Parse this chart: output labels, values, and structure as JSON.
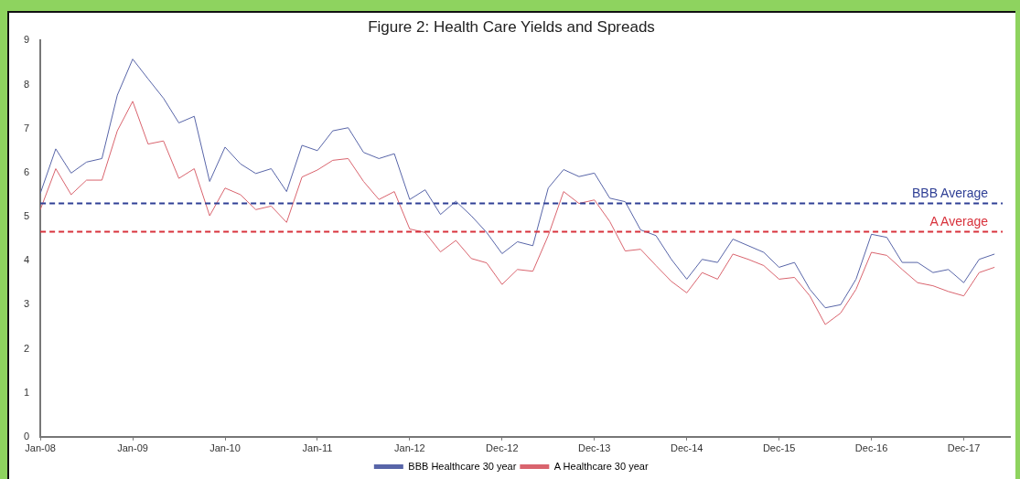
{
  "chart_data": {
    "type": "line",
    "title": "Figure 2: Health Care Yields and Spreads",
    "categories": [
      "Jan-08",
      null,
      null,
      null,
      null,
      null,
      "Jan-09",
      null,
      null,
      null,
      null,
      null,
      "Jan-10",
      null,
      null,
      null,
      null,
      null,
      "Jan-11",
      null,
      null,
      null,
      null,
      null,
      "Jan-12",
      null,
      null,
      null,
      null,
      null,
      "Dec-12",
      null,
      null,
      null,
      null,
      null,
      "Dec-13",
      null,
      null,
      null,
      null,
      null,
      "Dec-14",
      null,
      null,
      null,
      null,
      null,
      "Dec-15",
      null,
      null,
      null,
      null,
      null,
      "Dec-16",
      null,
      null,
      null,
      null,
      null,
      "Dec-17",
      null,
      null,
      null
    ],
    "series": [
      {
        "name": "BBB Healthcare 30 year",
        "color": "#5865a8",
        "values": [
          5.53,
          6.54,
          5.99,
          6.24,
          6.32,
          7.76,
          8.58,
          8.13,
          7.69,
          7.13,
          7.28,
          5.8,
          6.58,
          6.2,
          5.98,
          6.09,
          5.57,
          6.62,
          6.5,
          6.95,
          7.02,
          6.46,
          6.32,
          6.43,
          5.39,
          5.61,
          5.05,
          5.35,
          5.02,
          4.64,
          4.16,
          4.43,
          4.34,
          5.65,
          6.07,
          5.91,
          5.99,
          5.42,
          5.34,
          4.7,
          4.57,
          4.03,
          3.58,
          4.03,
          3.96,
          4.49,
          4.34,
          4.19,
          3.85,
          3.96,
          3.35,
          2.93,
          3.0,
          3.58,
          4.6,
          4.53,
          3.96,
          3.96,
          3.73,
          3.8,
          3.5,
          4.03,
          4.15,
          null
        ]
      },
      {
        "name": "A Healthcare 30 year",
        "color": "#d9646e",
        "values": [
          5.16,
          6.09,
          5.5,
          5.83,
          5.83,
          6.95,
          7.62,
          6.65,
          6.72,
          5.87,
          6.09,
          5.02,
          5.65,
          5.5,
          5.16,
          5.24,
          4.87,
          5.9,
          6.06,
          6.28,
          6.32,
          5.8,
          5.39,
          5.57,
          4.72,
          4.64,
          4.2,
          4.46,
          4.05,
          3.95,
          3.46,
          3.8,
          3.76,
          4.57,
          5.57,
          5.3,
          5.38,
          4.89,
          4.22,
          4.26,
          3.89,
          3.53,
          3.27,
          3.73,
          3.58,
          4.15,
          4.03,
          3.89,
          3.58,
          3.62,
          3.2,
          2.55,
          2.81,
          3.35,
          4.19,
          4.12,
          3.8,
          3.5,
          3.43,
          3.3,
          3.2,
          3.73,
          3.85,
          null
        ]
      }
    ],
    "ylim": [
      0,
      9
    ],
    "yticks": [
      0,
      1,
      2,
      3,
      4,
      5,
      6,
      7,
      8,
      9
    ],
    "ref_lines": [
      {
        "axis": "y",
        "value": 5.3,
        "label": "BBB Average",
        "color": "#2f3f95",
        "line_style": "dashed"
      },
      {
        "axis": "y",
        "value": 4.66,
        "label": "A Average",
        "color": "#d8323c",
        "line_style": "dashed"
      }
    ],
    "legend": "bottom",
    "grid": false,
    "marker": "none",
    "line_style": "solid"
  }
}
